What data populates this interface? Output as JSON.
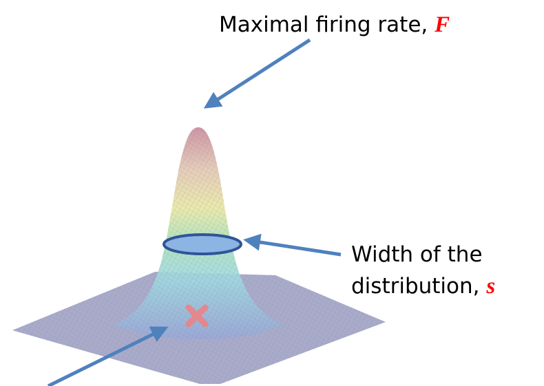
{
  "annotations": {
    "peak": {
      "text": "Maximal firing rate, ",
      "symbol": "F"
    },
    "width": {
      "lines": [
        "Width of the",
        "distribution, "
      ],
      "symbol": "s"
    }
  }
}
